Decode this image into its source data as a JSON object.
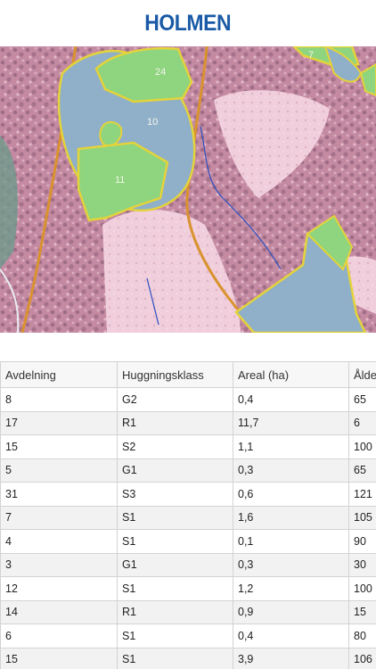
{
  "header": {
    "logo_text": "HOLMEN"
  },
  "map": {
    "stand_labels": [
      "24",
      "7",
      "10",
      "11"
    ]
  },
  "table": {
    "columns": [
      "Avdelning",
      "Huggningsklass",
      "Areal (ha)",
      "Ålder"
    ],
    "rows": [
      [
        "8",
        "G2",
        "0,4",
        "65"
      ],
      [
        "17",
        "R1",
        "11,7",
        "6"
      ],
      [
        "15",
        "S2",
        "1,1",
        "100"
      ],
      [
        "5",
        "G1",
        "0,3",
        "65"
      ],
      [
        "31",
        "S3",
        "0,6",
        "121"
      ],
      [
        "7",
        "S1",
        "1,6",
        "105"
      ],
      [
        "4",
        "S1",
        "0,1",
        "90"
      ],
      [
        "3",
        "G1",
        "0,3",
        "30"
      ],
      [
        "12",
        "S1",
        "1,2",
        "100"
      ],
      [
        "14",
        "R1",
        "0,9",
        "15"
      ],
      [
        "6",
        "S1",
        "0,4",
        "80"
      ],
      [
        "15",
        "S1",
        "3,9",
        "106"
      ]
    ]
  },
  "colors": {
    "brand": "#1a5aa6",
    "water": "#8fb0c8",
    "stand_fill": "#8fd47e",
    "stand_border": "#e4d33a",
    "forest": "#c98fa6",
    "road": "#d9922e"
  }
}
